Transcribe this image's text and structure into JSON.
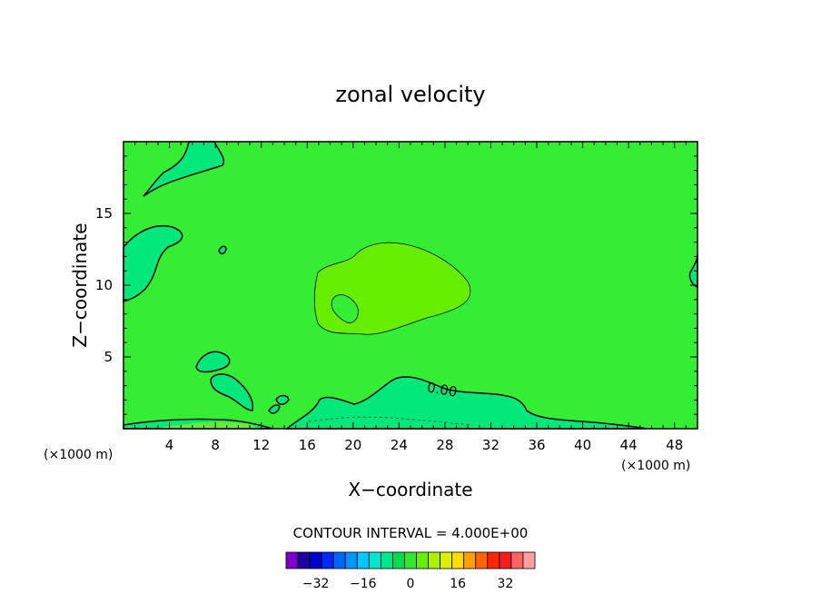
{
  "chart_data": {
    "type": "contour",
    "title": "zonal velocity",
    "xlabel": "X−coordinate",
    "ylabel": "Z−coordinate",
    "x_unit": "(×1000 m)",
    "y_unit": "(×1000 m)",
    "xlim": [
      0,
      50
    ],
    "ylim": [
      0,
      20
    ],
    "x_ticks": [
      4,
      8,
      12,
      16,
      20,
      24,
      28,
      32,
      36,
      40,
      44,
      48
    ],
    "y_ticks": [
      5,
      10,
      15
    ],
    "contour_interval_text": "CONTOUR INTERVAL = 4.000E+00",
    "contour_label": "0.00",
    "colorbar": {
      "ticks": [
        "−32",
        "−16",
        "0",
        "16",
        "32"
      ],
      "colors": [
        "#7f00c8",
        "#1e00a0",
        "#0000cd",
        "#0028ff",
        "#0064ff",
        "#0096ff",
        "#00c8ff",
        "#00e6d2",
        "#00e68c",
        "#00dc50",
        "#32e632",
        "#64f000",
        "#aaf000",
        "#dcf000",
        "#ffdc00",
        "#ffa000",
        "#ff6400",
        "#ff2800",
        "#f01e1e",
        "#ff6464",
        "#ffa0a0"
      ]
    },
    "fields": {
      "background_color": "#33ee33",
      "positive_color": "#66ee00",
      "negative_color": "#00e87a"
    }
  }
}
